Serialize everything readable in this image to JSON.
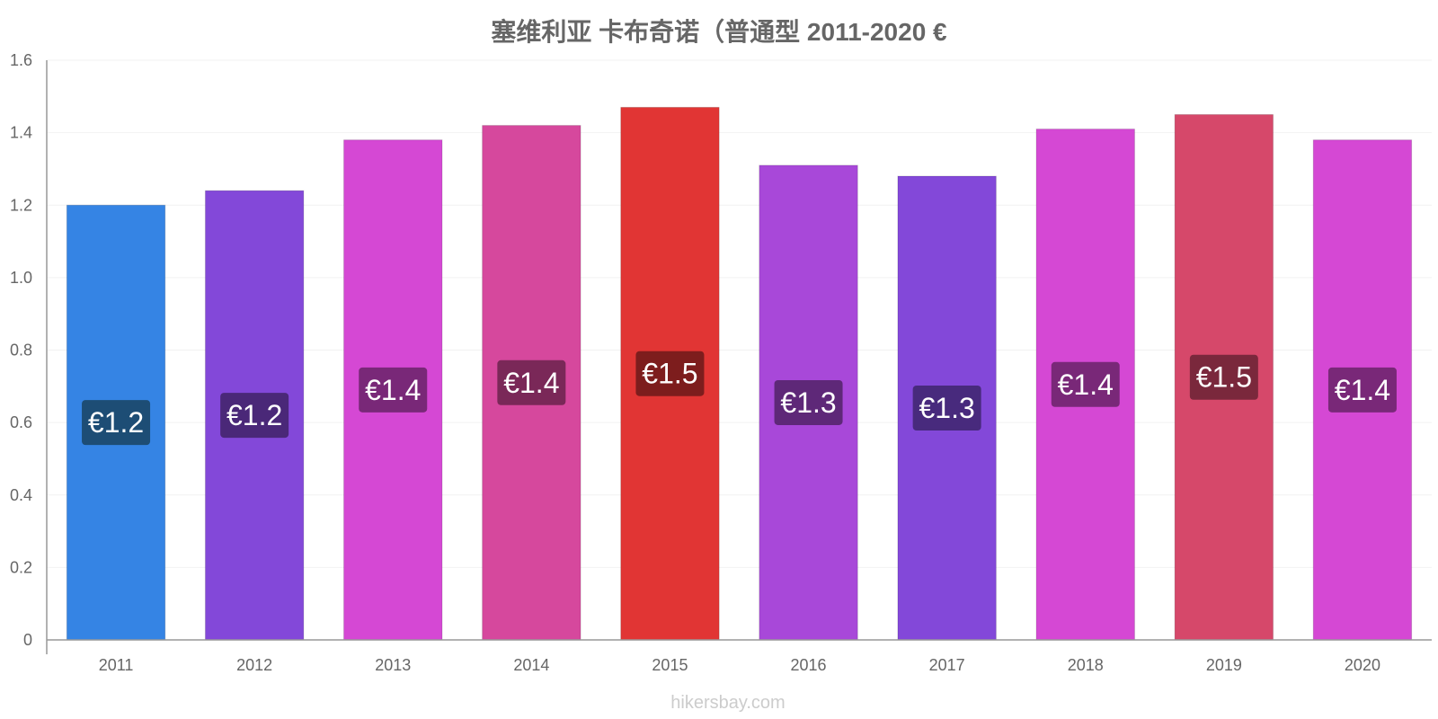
{
  "chart_data": {
    "type": "bar",
    "title": "塞维利亚 卡布奇诺（普通型 2011-2020 €",
    "categories": [
      "2011",
      "2012",
      "2013",
      "2014",
      "2015",
      "2016",
      "2017",
      "2018",
      "2019",
      "2020"
    ],
    "values": [
      1.2,
      1.24,
      1.38,
      1.42,
      1.47,
      1.31,
      1.28,
      1.41,
      1.45,
      1.38
    ],
    "data_labels": [
      "€1.2",
      "€1.2",
      "€1.4",
      "€1.4",
      "€1.5",
      "€1.3",
      "€1.3",
      "€1.4",
      "€1.5",
      "€1.4"
    ],
    "bar_colors": [
      "#3584e4",
      "#8348d9",
      "#d548d4",
      "#d6489d",
      "#e13534",
      "#a848d9",
      "#8348d9",
      "#d548d4",
      "#d6486a",
      "#d548d4"
    ],
    "label_colors": [
      "#1d4d75",
      "#4a2878",
      "#792878",
      "#7a2858",
      "#7d1d1d",
      "#5e2878",
      "#482a7d",
      "#792878",
      "#7a283c",
      "#792878"
    ],
    "y_ticks": [
      "0",
      "0.2",
      "0.4",
      "0.6",
      "0.8",
      "1.0",
      "1.2",
      "1.4",
      "1.6"
    ],
    "ylim": [
      0,
      1.6
    ],
    "xlabel": "",
    "ylabel": "",
    "grid": true
  },
  "watermark": "hikersbay.com"
}
